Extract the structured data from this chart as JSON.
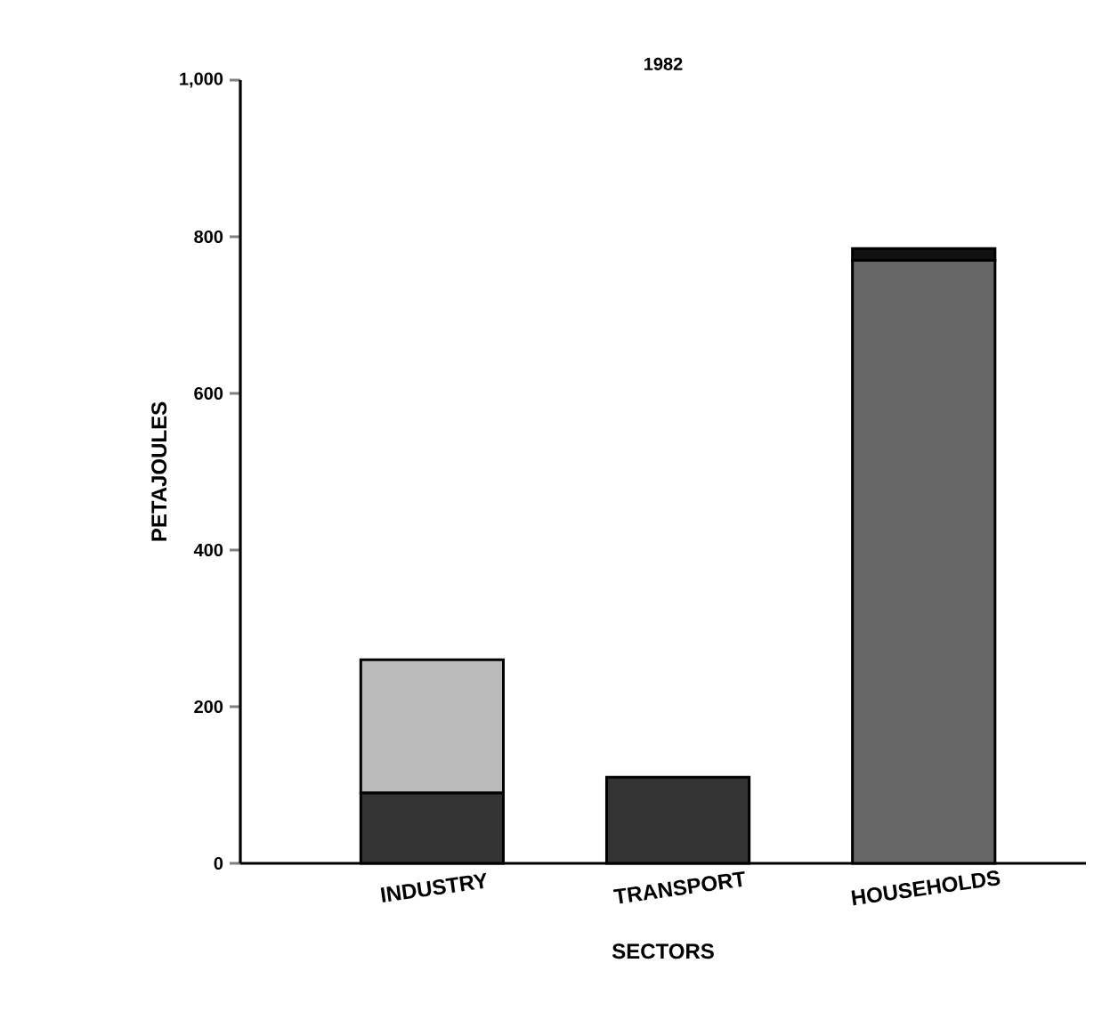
{
  "chart_data": {
    "type": "bar",
    "stacked": true,
    "title": "1982",
    "xlabel": "SECTORS",
    "ylabel": "PETAJOULES",
    "categories": [
      "INDUSTRY",
      "TRANSPORT",
      "HOUSEHOLDS"
    ],
    "series": [
      {
        "color": "#333333",
        "values": [
          90,
          110,
          null
        ]
      },
      {
        "color": "#bbbbbb",
        "values": [
          170,
          null,
          null
        ]
      },
      {
        "color": "#666666",
        "values": [
          null,
          null,
          770
        ]
      },
      {
        "color": "#111111",
        "values": [
          null,
          null,
          15
        ]
      }
    ],
    "ylim": [
      0,
      1000
    ],
    "yticks": [
      0,
      200,
      400,
      600,
      800,
      {
        "value": 1000,
        "label": "1,000"
      }
    ]
  }
}
